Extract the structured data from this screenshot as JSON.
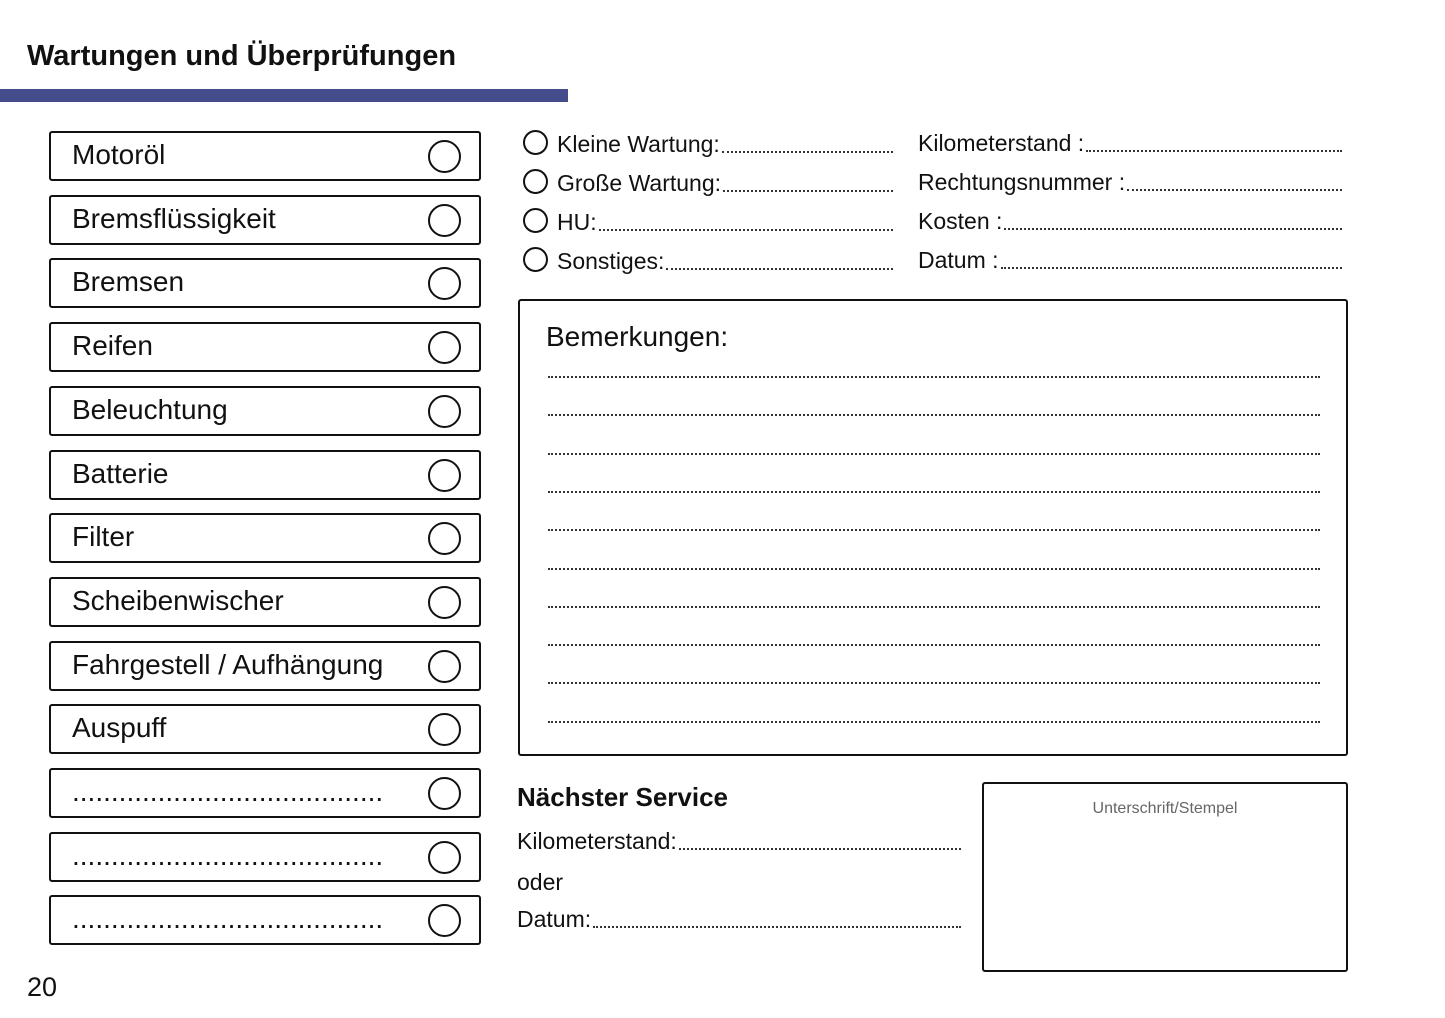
{
  "header": {
    "title": "Wartungen und Überprüfungen",
    "accent_color": "#454c8c"
  },
  "checklist": [
    {
      "label": "Motoröl"
    },
    {
      "label": "Bremsflüssigkeit"
    },
    {
      "label": "Bremsen"
    },
    {
      "label": "Reifen"
    },
    {
      "label": "Beleuchtung"
    },
    {
      "label": "Batterie"
    },
    {
      "label": "Filter"
    },
    {
      "label": "Scheibenwischer"
    },
    {
      "label": "Fahrgestell / Aufhängung"
    },
    {
      "label": "Auspuff"
    },
    {
      "label": "........................................"
    },
    {
      "label": "........................................"
    },
    {
      "label": "........................................"
    }
  ],
  "service_types": [
    {
      "label": "Kleine Wartung:"
    },
    {
      "label": "Große Wartung:"
    },
    {
      "label": "HU:"
    },
    {
      "label": "Sonstiges:"
    }
  ],
  "details": [
    {
      "label": "Kilometerstand :"
    },
    {
      "label": "Rechtungsnummer :"
    },
    {
      "label": "Kosten :"
    },
    {
      "label": "Datum :"
    }
  ],
  "remarks": {
    "title": "Bemerkungen:"
  },
  "next_service": {
    "title": "Nächster Service",
    "km_label": "Kilometerstand:",
    "or_label": "oder",
    "date_label": "Datum:"
  },
  "signature": {
    "label": "Unterschrift/Stempel"
  },
  "page_number": "20"
}
